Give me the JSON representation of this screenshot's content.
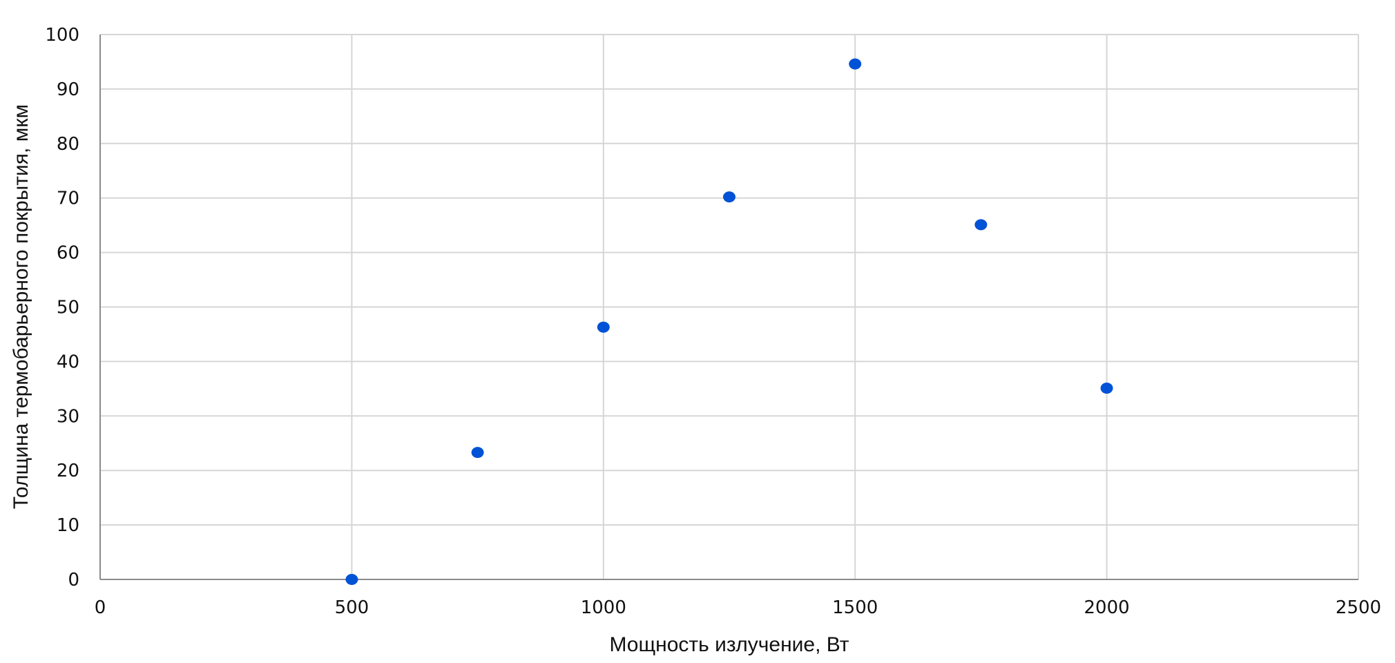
{
  "chart_data": {
    "type": "scatter",
    "title": "",
    "xlabel": "Мощность излучение, Вт",
    "ylabel": "Толщина термобарьерного покрытия, мкм",
    "xlim": [
      0,
      2500
    ],
    "ylim": [
      0,
      100
    ],
    "x_ticks": [
      "0",
      "500",
      "1000",
      "1500",
      "2000",
      "2500"
    ],
    "y_ticks": [
      "0",
      "10",
      "20",
      "30",
      "40",
      "50",
      "60",
      "70",
      "80",
      "90",
      "100"
    ],
    "grid": true,
    "legend": "none",
    "marker_color": "#0052d6",
    "series": [
      {
        "x": [
          500,
          750,
          1000,
          1250,
          1500,
          1750,
          2000
        ],
        "y": [
          0,
          23.3,
          46.3,
          70.2,
          94.6,
          65.1,
          35.1
        ]
      }
    ]
  }
}
